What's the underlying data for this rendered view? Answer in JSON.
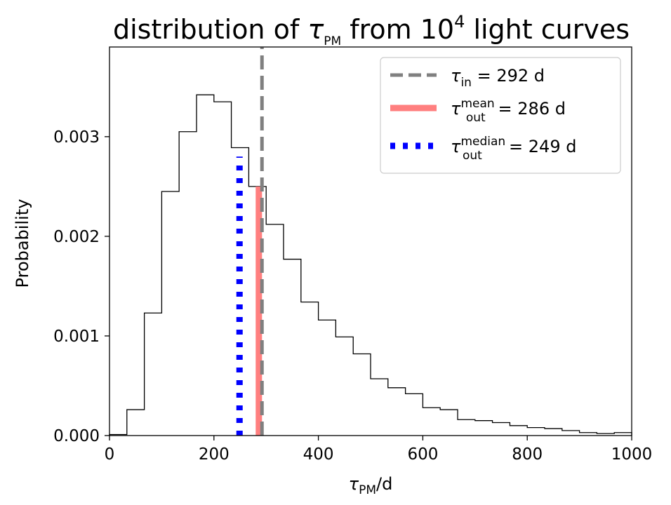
{
  "chart_data": {
    "type": "histogram",
    "title": {
      "prefix": "distribution of ",
      "symbol": "τ",
      "symbol_sub": "PM",
      "middle": " from 10",
      "sup": "4",
      "suffix": " light curves"
    },
    "xlabel": {
      "symbol": "τ",
      "sub": "PM",
      "suffix": "/d"
    },
    "ylabel": "Probability",
    "xlim": [
      0,
      1000
    ],
    "ylim": [
      0,
      0.0039
    ],
    "xticks": [
      0,
      200,
      400,
      600,
      800,
      1000
    ],
    "yticks": [
      0.0,
      0.001,
      0.002,
      0.003
    ],
    "xtick_labels": [
      "0",
      "200",
      "400",
      "600",
      "800",
      "1000"
    ],
    "ytick_labels": [
      "0.000",
      "0.001",
      "0.002",
      "0.003"
    ],
    "bin_edges": [
      0,
      33.3,
      66.7,
      100,
      133.3,
      166.7,
      200,
      233.3,
      266.7,
      300,
      333.3,
      366.7,
      400,
      433.3,
      466.7,
      500,
      533.3,
      566.7,
      600,
      633.3,
      666.7,
      700,
      733.3,
      766.7,
      800,
      833.3,
      866.7,
      900,
      933.3,
      966.7,
      1000
    ],
    "bin_values": [
      1e-05,
      0.00026,
      0.00123,
      0.00245,
      0.00305,
      0.00342,
      0.00335,
      0.00289,
      0.0025,
      0.00212,
      0.00177,
      0.00134,
      0.00116,
      0.00099,
      0.00082,
      0.00057,
      0.00048,
      0.00042,
      0.00028,
      0.00026,
      0.00016,
      0.00015,
      0.00013,
      0.0001,
      8e-05,
      7e-05,
      5e-05,
      3e-05,
      2e-05,
      3e-05
    ],
    "vlines": [
      {
        "name": "tau-in",
        "x": 292,
        "ymax": 0.0039,
        "color": "#808080",
        "style": "dashed"
      },
      {
        "name": "tau-out-mean",
        "x": 286,
        "ymax": 0.0025,
        "color": "#ff7f7f",
        "style": "solid"
      },
      {
        "name": "tau-out-median",
        "x": 249,
        "ymax": 0.0028,
        "color": "#0000ff",
        "style": "dotted"
      }
    ],
    "legend": {
      "position": "top-right",
      "entries": [
        {
          "symbol": "τ",
          "sub": "in",
          "sup": "",
          "value_text": " = 292 d",
          "color": "#808080",
          "style": "dashed"
        },
        {
          "symbol": "τ",
          "sub": "out",
          "sup": "mean",
          "value_text": " = 286 d",
          "color": "#ff7f7f",
          "style": "solid"
        },
        {
          "symbol": "τ",
          "sub": "out",
          "sup": "median",
          "value_text": " = 249 d",
          "color": "#0000ff",
          "style": "dotted"
        }
      ]
    }
  }
}
